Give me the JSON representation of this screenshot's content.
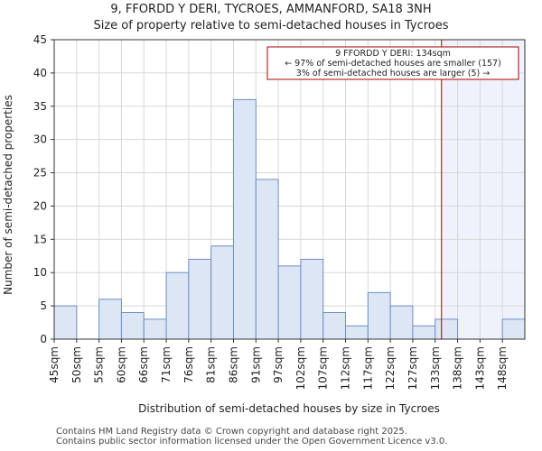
{
  "chart_data": {
    "type": "bar",
    "title": "9, FFORDD Y DERI, TYCROES, AMMANFORD, SA18 3NH",
    "subtitle": "Size of property relative to semi-detached houses in Tycroes",
    "xlabel": "Distribution of semi-detached houses by size in Tycroes",
    "ylabel": "Number of semi-detached properties",
    "categories": [
      "45sqm",
      "50sqm",
      "55sqm",
      "60sqm",
      "66sqm",
      "71sqm",
      "76sqm",
      "81sqm",
      "86sqm",
      "91sqm",
      "97sqm",
      "102sqm",
      "107sqm",
      "112sqm",
      "117sqm",
      "122sqm",
      "127sqm",
      "133sqm",
      "138sqm",
      "143sqm",
      "148sqm"
    ],
    "values": [
      5,
      0,
      6,
      4,
      3,
      10,
      12,
      14,
      36,
      24,
      11,
      12,
      4,
      2,
      7,
      5,
      2,
      3,
      0,
      0,
      3
    ],
    "ylim": [
      0,
      45
    ],
    "yticks": [
      0,
      5,
      10,
      15,
      20,
      25,
      30,
      35,
      40,
      45
    ],
    "grid": true,
    "marker": {
      "value_sqm": 134,
      "color": "#aa0000"
    },
    "annotation": {
      "line1": "9 FFORDD Y DERI: 134sqm",
      "line2": "← 97% of semi-detached houses are smaller (157)",
      "line3": "3% of semi-detached houses are larger (5) →"
    },
    "colors": {
      "bar_fill": "#dce6f5",
      "bar_edge": "#6f8fc4",
      "highlight": "#eef2fb",
      "grid": "#d8d8d8"
    }
  },
  "footer": {
    "line1": "Contains HM Land Registry data © Crown copyright and database right 2025.",
    "line2": "Contains public sector information licensed under the Open Government Licence v3.0."
  }
}
